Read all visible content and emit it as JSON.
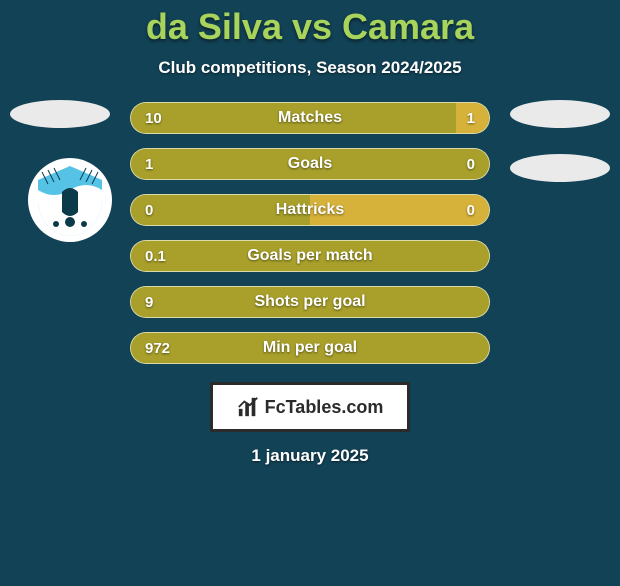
{
  "header": {
    "title": "da Silva vs Camara",
    "title_color": "#a8d45c",
    "subtitle": "Club competitions, Season 2024/2025"
  },
  "colors": {
    "background": "#124256",
    "bar_left": "#a8a02a",
    "bar_right": "#d6b23a",
    "bar_border": "rgba(255,255,255,0.6)",
    "text": "#ffffff"
  },
  "stats": [
    {
      "label": "Matches",
      "left_val": "10",
      "right_val": "1",
      "left_num": 10,
      "right_num": 1
    },
    {
      "label": "Goals",
      "left_val": "1",
      "right_val": "0",
      "left_num": 1,
      "right_num": 0
    },
    {
      "label": "Hattricks",
      "left_val": "0",
      "right_val": "0",
      "left_num": 0,
      "right_num": 0
    },
    {
      "label": "Goals per match",
      "left_val": "0.1",
      "right_val": "",
      "left_num": 0.1,
      "right_num": 0
    },
    {
      "label": "Shots per goal",
      "left_val": "9",
      "right_val": "",
      "left_num": 9,
      "right_num": 0
    },
    {
      "label": "Min per goal",
      "left_val": "972",
      "right_val": "",
      "left_num": 972,
      "right_num": 0
    }
  ],
  "players": {
    "left": {
      "placeholder_color": "#eaeaea"
    },
    "right": {
      "placeholder_color": "#eaeaea"
    }
  },
  "clubs": {
    "left": {
      "primary": "#56c2e6",
      "secondary": "#ffffff",
      "accent": "#0b3a4a"
    }
  },
  "footer": {
    "brand_text": "FcTables.com",
    "date": "1 january 2025"
  }
}
